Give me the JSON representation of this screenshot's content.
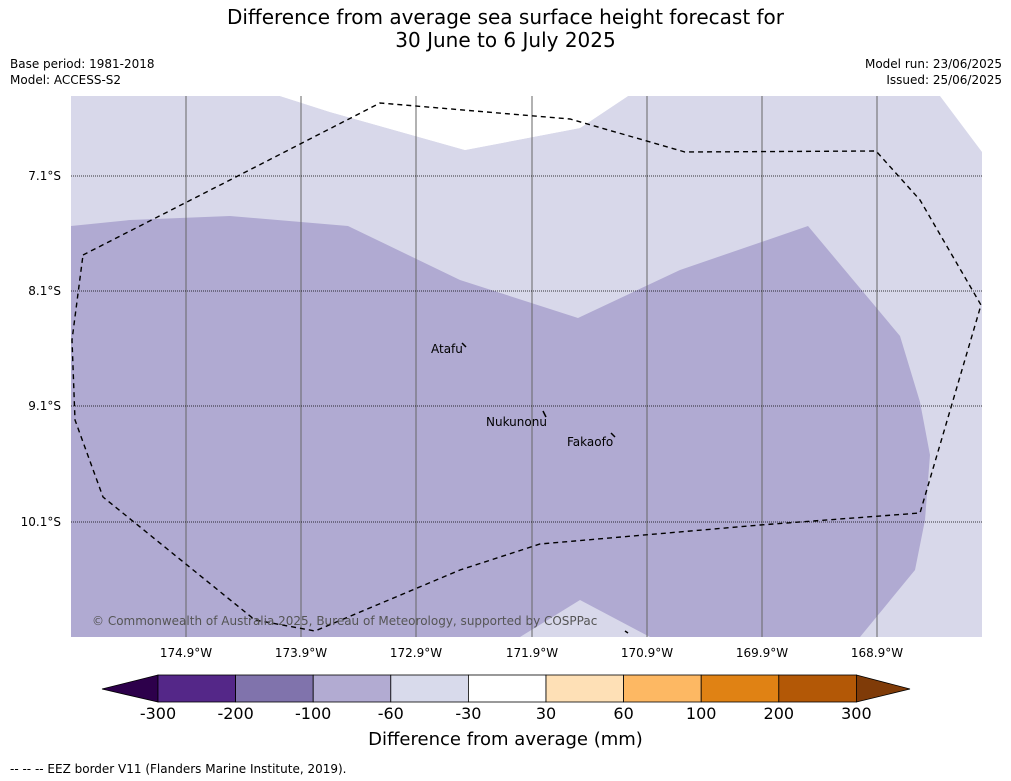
{
  "title": {
    "line1": "Difference from average sea surface height forecast for",
    "line2": "30 June to 6 July 2025"
  },
  "meta": {
    "base_period": "Base period: 1981-2018",
    "model": "Model: ACCESS-S2",
    "model_run": "Model run: 23/06/2025",
    "issued": "Issued: 25/06/2025"
  },
  "map": {
    "latitude_labels": [
      "7.1°S",
      "8.1°S",
      "9.1°S",
      "10.1°S"
    ],
    "longitude_labels": [
      "174.9°W",
      "173.9°W",
      "172.9°W",
      "171.9°W",
      "170.9°W",
      "169.9°W",
      "168.9°W"
    ],
    "places": [
      {
        "name": "Atafu"
      },
      {
        "name": "Nukunonu"
      },
      {
        "name": "Fakaofo"
      }
    ],
    "copyright": "© Commonwealth of Australia 2025, Bureau of Meteorology, supported by COSPPac",
    "field_colors": {
      "-60_to_-30": "#d8d8ea",
      "-100_to_-60": "#b0aad2"
    }
  },
  "colorbar": {
    "ticks": [
      "-300",
      "-200",
      "-100",
      "-60",
      "-30",
      "30",
      "60",
      "100",
      "200",
      "300"
    ],
    "colors": [
      "#2d004b",
      "#542788",
      "#8073ac",
      "#b2abd2",
      "#d8daeb",
      "#ffffff",
      "#fee0b6",
      "#fdb863",
      "#e08214",
      "#b35806",
      "#7f3b08"
    ],
    "title": "Difference from average (mm)"
  },
  "footnote": "--  --  -- EEZ border V11 (Flanders Marine Institute, 2019)."
}
